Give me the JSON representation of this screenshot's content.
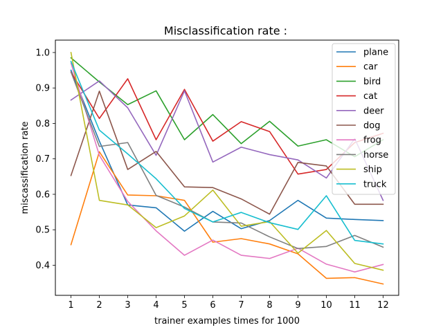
{
  "chart_data": {
    "type": "line",
    "title": "Misclassification rate :",
    "xlabel": "trainer examples times for 1000",
    "ylabel": "miscassification rate",
    "x": [
      1,
      2,
      3,
      4,
      5,
      6,
      7,
      8,
      9,
      10,
      11,
      12
    ],
    "xlim": [
      0.45,
      12.55
    ],
    "ylim": [
      0.315,
      1.035
    ],
    "yticks": [
      0.4,
      0.5,
      0.6,
      0.7,
      0.8,
      0.9,
      1.0
    ],
    "grid": false,
    "legend_position": "top-right",
    "series": [
      {
        "name": "plane",
        "color": "#1f77b4",
        "values": [
          0.95,
          0.75,
          0.57,
          0.562,
          0.496,
          0.552,
          0.503,
          0.526,
          0.583,
          0.533,
          0.529,
          0.526
        ]
      },
      {
        "name": "car",
        "color": "#ff7f0e",
        "values": [
          0.458,
          0.72,
          0.598,
          0.596,
          0.583,
          0.465,
          0.475,
          0.46,
          0.432,
          0.363,
          0.365,
          0.347
        ]
      },
      {
        "name": "bird",
        "color": "#2ca02c",
        "values": [
          0.985,
          0.917,
          0.853,
          0.892,
          0.754,
          0.825,
          0.743,
          0.806,
          0.736,
          0.754,
          0.706,
          0.754
        ]
      },
      {
        "name": "cat",
        "color": "#d62728",
        "values": [
          0.945,
          0.814,
          0.926,
          0.754,
          0.896,
          0.75,
          0.805,
          0.777,
          0.657,
          0.67,
          0.746,
          0.772
        ]
      },
      {
        "name": "deer",
        "color": "#9467bd",
        "values": [
          0.866,
          0.92,
          0.844,
          0.71,
          0.892,
          0.691,
          0.733,
          0.712,
          0.697,
          0.646,
          0.757,
          0.583
        ]
      },
      {
        "name": "dog",
        "color": "#8c564b",
        "values": [
          0.653,
          0.891,
          0.67,
          0.721,
          0.621,
          0.619,
          0.587,
          0.544,
          0.69,
          0.68,
          0.572,
          0.572
        ]
      },
      {
        "name": "frog",
        "color": "#e377c2",
        "values": [
          0.97,
          0.71,
          0.58,
          0.497,
          0.428,
          0.471,
          0.428,
          0.419,
          0.448,
          0.403,
          0.381,
          0.402
        ]
      },
      {
        "name": "horse",
        "color": "#7f7f7f",
        "values": [
          0.945,
          0.735,
          0.746,
          0.597,
          0.564,
          0.522,
          0.519,
          0.48,
          0.447,
          0.453,
          0.484,
          0.451
        ]
      },
      {
        "name": "ship",
        "color": "#bcbd22",
        "values": [
          1.0,
          0.583,
          0.57,
          0.506,
          0.539,
          0.612,
          0.51,
          0.523,
          0.434,
          0.498,
          0.405,
          0.386
        ]
      },
      {
        "name": "truck",
        "color": "#17becf",
        "values": [
          0.975,
          0.781,
          0.714,
          0.644,
          0.56,
          0.522,
          0.549,
          0.52,
          0.501,
          0.596,
          0.47,
          0.46
        ]
      }
    ]
  }
}
